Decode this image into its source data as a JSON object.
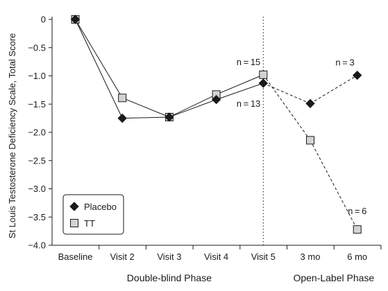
{
  "chart_data": {
    "type": "line",
    "ylabel": "St Louis Testosterone Deficiency Scale, Total Score",
    "ylim": [
      -4.0,
      0
    ],
    "yticks": [
      0,
      -0.5,
      -1.0,
      -1.5,
      -2.0,
      -2.5,
      -3.0,
      -3.5,
      -4.0
    ],
    "ytick_labels": [
      "0",
      "−0.5",
      "−1.0",
      "−1.5",
      "−2.0",
      "−2.5",
      "−3.0",
      "−3.5",
      "−4.0"
    ],
    "categories": [
      "Baseline",
      "Visit 2",
      "Visit 3",
      "Visit 4",
      "Visit 5",
      "3 mo",
      "6 mo"
    ],
    "phases": [
      {
        "label": "Double-blind Phase",
        "from": 0,
        "to": 4
      },
      {
        "label": "Open-Label Phase",
        "from": 5,
        "to": 6
      }
    ],
    "phase_divider_after_index": 4,
    "series": [
      {
        "name": "Placebo",
        "marker": "diamond",
        "color": "#1a1a1a",
        "values": [
          0,
          -1.75,
          -1.73,
          -1.42,
          -1.13,
          -1.49,
          -0.99
        ],
        "dashed_from_index": 4
      },
      {
        "name": "TT",
        "marker": "square",
        "color": "#d3d3d3",
        "values": [
          0,
          -1.39,
          -1.73,
          -1.33,
          -0.98,
          -2.14,
          -3.72
        ],
        "dashed_from_index": 4
      }
    ],
    "annotations": [
      {
        "text": "n = 15",
        "series": "TT",
        "index": 4,
        "pos": "above-left"
      },
      {
        "text": "n = 13",
        "series": "Placebo",
        "index": 4,
        "pos": "below-left"
      },
      {
        "text": "n = 3",
        "series": "Placebo",
        "index": 6,
        "pos": "above-left"
      },
      {
        "text": "n = 6",
        "series": "TT",
        "index": 6,
        "pos": "above"
      }
    ],
    "legend": {
      "placement": "bottom-left",
      "entries": [
        "Placebo",
        "TT"
      ]
    },
    "grid": false
  }
}
